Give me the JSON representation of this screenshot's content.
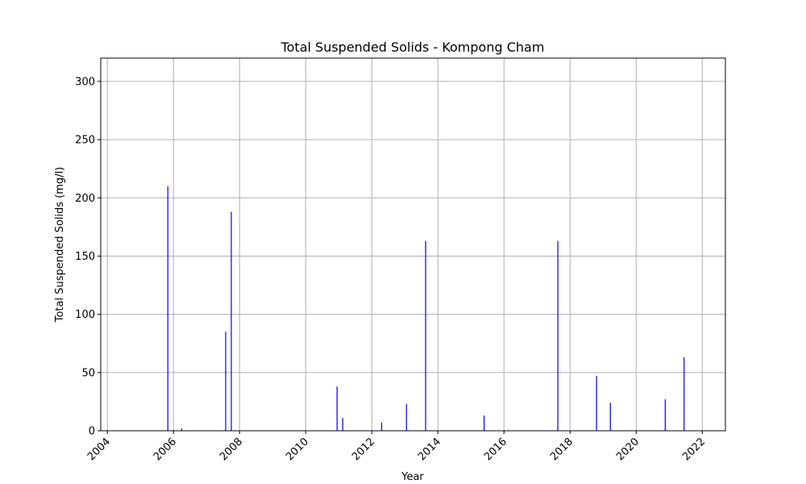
{
  "chart_data": {
    "type": "bar",
    "title": "Total Suspended Solids - Kompong Cham",
    "xlabel": "Year",
    "ylabel": "Total Suspended Solids (mg/l)",
    "xlim": [
      2003.8,
      2022.7
    ],
    "ylim": [
      0,
      320
    ],
    "xticks": [
      2004,
      2006,
      2008,
      2010,
      2012,
      2014,
      2016,
      2018,
      2020,
      2022
    ],
    "yticks": [
      0,
      50,
      100,
      150,
      200,
      250,
      300
    ],
    "grid": true,
    "bar_color": "#0000ff",
    "series": [
      {
        "x": [
          2005.83,
          2006.25,
          2007.58,
          2007.75,
          2010.95,
          2011.12,
          2012.3,
          2013.05,
          2013.63,
          2015.4,
          2017.63,
          2018.8,
          2019.22,
          2020.88,
          2021.45
        ],
        "values": [
          210,
          2,
          85,
          188,
          38,
          11,
          7,
          23,
          163,
          13,
          163,
          47,
          24,
          27,
          63
        ]
      }
    ]
  }
}
